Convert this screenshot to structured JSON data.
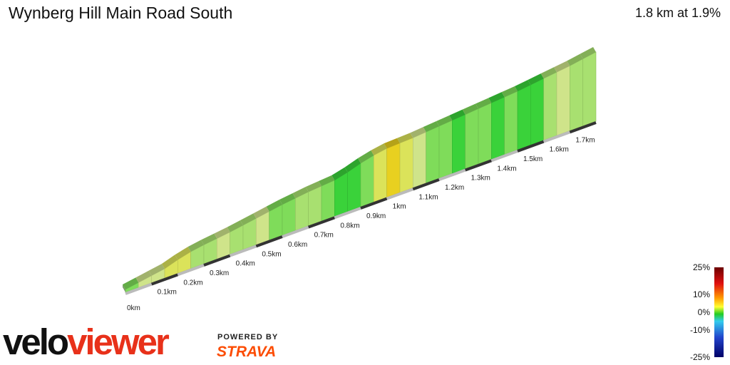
{
  "title": "Wynberg Hill Main Road South",
  "summary": "1.8 km at 1.9%",
  "chart_data": {
    "type": "area",
    "x_unit": "km",
    "distance_km": 1.8,
    "average_gradient_pct": 1.9,
    "distance_ticks": [
      "0km",
      "0.1km",
      "0.2km",
      "0.3km",
      "0.4km",
      "0.5km",
      "0.6km",
      "0.7km",
      "0.8km",
      "0.9km",
      "1km",
      "1.1km",
      "1.2km",
      "1.3km",
      "1.4km",
      "1.5km",
      "1.6km",
      "1.7km"
    ],
    "elevation_profile_m": [
      [
        0.0,
        0
      ],
      [
        0.05,
        2
      ],
      [
        0.1,
        4
      ],
      [
        0.15,
        6
      ],
      [
        0.2,
        10
      ],
      [
        0.25,
        13
      ],
      [
        0.3,
        15
      ],
      [
        0.4,
        18
      ],
      [
        0.5,
        22
      ],
      [
        0.6,
        26
      ],
      [
        0.7,
        29
      ],
      [
        0.8,
        31
      ],
      [
        0.85,
        34
      ],
      [
        0.9,
        38
      ],
      [
        0.95,
        41
      ],
      [
        1.0,
        43
      ],
      [
        1.1,
        44
      ],
      [
        1.2,
        46
      ],
      [
        1.3,
        48
      ],
      [
        1.4,
        50
      ],
      [
        1.5,
        52
      ],
      [
        1.6,
        55
      ],
      [
        1.7,
        58
      ],
      [
        1.8,
        62
      ]
    ],
    "segment_gradient_pct": [
      2,
      5,
      4,
      7,
      6,
      3,
      3,
      4,
      3,
      3,
      4,
      2,
      2,
      3,
      3,
      2,
      1,
      1,
      2,
      7,
      8,
      6,
      5,
      2,
      2,
      1,
      2,
      2,
      1,
      2,
      1,
      1,
      3,
      4,
      3,
      3
    ],
    "legend": {
      "labels": [
        "25%",
        "10%",
        "0%",
        "-10%",
        "-25%"
      ],
      "values": [
        25,
        10,
        0,
        -10,
        -25
      ]
    }
  },
  "branding": {
    "logo_part1": "velo",
    "logo_part2": "viewer",
    "powered_by": "POWERED BY",
    "strava": "STRAVA"
  }
}
